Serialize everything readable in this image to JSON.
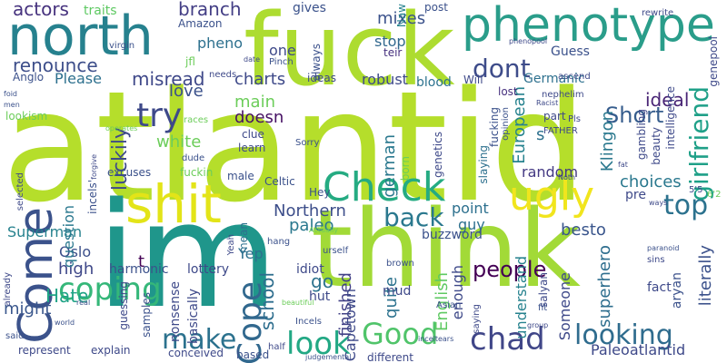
{
  "cloud": {
    "w0": "atlantid",
    "w1": "think",
    "w2": "fuck",
    "w3": "im",
    "w4": "north",
    "w5": "phenotype",
    "w6": "shit",
    "w7": "Come",
    "w8": "Check",
    "w9": "ugly",
    "w10": "coping",
    "w11": "Cope",
    "w12": "make",
    "w13": "chad",
    "w14": "Good",
    "w15": "look",
    "w16": "looking",
    "w17": "try",
    "w18": "top",
    "w19": "back",
    "w20": "dont",
    "w21": "renounce",
    "w22": "Short",
    "w23": "Please",
    "w24": "girlfriend",
    "w25": "actors",
    "w26": "people",
    "w27": "Hate",
    "w28": "luckily",
    "w29": "phenopool",
    "w30": "Superman",
    "w31": "Klingon",
    "w32": "misread",
    "w33": "white",
    "w34": "branch",
    "w35": "European",
    "w36": "charts",
    "w37": "love",
    "w38": "school",
    "w39": "literally",
    "w40": "ideal",
    "w41": "robust",
    "w42": "choices",
    "w43": "finished",
    "w44": "pheno",
    "w45": "main",
    "w46": "doesn",
    "w47": "quite",
    "w48": "Northern",
    "w49": "English",
    "w50": "Paleoatlantid",
    "w51": "superhero",
    "w52": "Someone",
    "w53": "paleo",
    "w54": "besto",
    "w55": "high",
    "w56": "might",
    "w57": "go",
    "w58": "Yep",
    "w59": "Oslo",
    "w60": "question",
    "w61": "german",
    "w62": "point",
    "w63": "random",
    "w64": "mixes",
    "w65": "gives",
    "w66": "stop",
    "w67": "one",
    "w68": "traits",
    "w69": "Amazon",
    "w70": "Anglo",
    "w71": "Germanic",
    "w72": "lost",
    "w73": "teir",
    "w74": "blood",
    "w75": "ideas",
    "w76": "Will",
    "w77": "Guess",
    "w78": "post",
    "w79": "always",
    "w80": "Naw",
    "w81": "understand",
    "w82": "Capetown",
    "w83": "enough",
    "w84": "aryan",
    "w85": "fact",
    "w86": "pre",
    "w87": "guy",
    "w88": "Celtic",
    "w89": "harmonic",
    "w90": "lottery",
    "w91": "buzzword",
    "w92": "idiot",
    "w93": "hut",
    "w94": "mud",
    "w95": "basically",
    "w96": "nonsense",
    "w97": "explain",
    "w98": "represent",
    "w99": "based",
    "w100": "conceived",
    "w101": "different",
    "w102": "samples",
    "w103": "guessing",
    "w104": "incels'",
    "w105": "Incels",
    "w106": "mean",
    "w107": "male",
    "w108": "fuckin",
    "w109": "excuses",
    "w110": "clue",
    "w111": "learn",
    "w112": "lookism",
    "w113": "genetics",
    "w114": "slaying",
    "w115": "fucking",
    "w116": "opinion",
    "w117": "gambling",
    "w118": "beauty",
    "w119": "intelligence",
    "w120": "genepool",
    "w121": "nephelim",
    "w122": "ascend",
    "w123": "rewrite",
    "w124": "Pls",
    "w125": "FATHER",
    "w126": "part",
    "w127": "Hey",
    "w128": "born",
    "w129": "saying",
    "w130": "salyan",
    "w131": "Asian",
    "w132": "brown",
    "w133": "sins",
    "w134": "fit",
    "w135": "beautiful",
    "w136": "urself",
    "w137": "hang",
    "w138": "half",
    "w139": "Sorry",
    "w140": "dude",
    "w141": "Yeah",
    "w142": "forgive",
    "w143": "selected",
    "w144": "already",
    "w145": "said",
    "w146": "t",
    "w147": "s",
    "w148": "jfl",
    "w149": "needs",
    "w150": "Pinch",
    "w151": "virgin",
    "w152": "men",
    "w153": "foid",
    "w154": "races",
    "w155": "operates",
    "w156": "date",
    "w157": "ways",
    "w158": "paranoid",
    "w159": "Noth",
    "w160": "5'5",
    "w161": "6'2",
    "w162": "fat",
    "w163": "real",
    "w164": "world",
    "w165": "group",
    "w166": "inceltears",
    "w167": "Racist",
    "w168": "Actually",
    "w169": "judgemental"
  }
}
